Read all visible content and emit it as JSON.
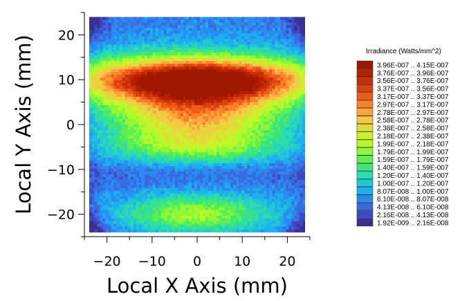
{
  "chart_data": {
    "type": "heatmap",
    "title": "",
    "xlabel": "Local X Axis (mm)",
    "ylabel": "Local Y Axis (mm)",
    "xlim": [
      -25,
      25
    ],
    "ylim": [
      -25,
      25
    ],
    "x_ticks": [
      -20,
      -10,
      0,
      10,
      20
    ],
    "y_ticks": [
      20,
      10,
      0,
      -10,
      -20
    ],
    "x_tick_labels": [
      "−20",
      "−10",
      "0",
      "10",
      "20"
    ],
    "y_tick_labels": [
      "20",
      "10",
      "0",
      "−10",
      "−20"
    ],
    "extent": [
      -24,
      24,
      -24,
      24
    ],
    "grid": false,
    "colorbar": {
      "title": "Irradiance (Watts/mm^2)",
      "placement": "right",
      "bins": [
        {
          "label": "3.96E-007 .. 4.15E-007",
          "color": "#a01800"
        },
        {
          "label": "3.76E-007 .. 3.96E-007",
          "color": "#b52000"
        },
        {
          "label": "3.56E-007 .. 3.76E-007",
          "color": "#c82e08"
        },
        {
          "label": "3.37E-007 .. 3.56E-007",
          "color": "#dc4010"
        },
        {
          "label": "3.17E-007 .. 3.37E-007",
          "color": "#ee5c18"
        },
        {
          "label": "2.97E-007 .. 3.17E-007",
          "color": "#fb8228"
        },
        {
          "label": "2.78E-007 .. 2.97E-007",
          "color": "#fca63c"
        },
        {
          "label": "2.58E-007 .. 2.78E-007",
          "color": "#f6c846"
        },
        {
          "label": "2.38E-007 .. 2.58E-007",
          "color": "#e0dc3a"
        },
        {
          "label": "2.18E-007 .. 2.38E-007",
          "color": "#cef02a"
        },
        {
          "label": "1.99E-007 .. 2.18E-007",
          "color": "#b4fa2a"
        },
        {
          "label": "1.79E-007 .. 1.99E-007",
          "color": "#8ef838"
        },
        {
          "label": "1.59E-007 .. 1.79E-007",
          "color": "#5ef050"
        },
        {
          "label": "1.40E-007 .. 1.59E-007",
          "color": "#3ee67a"
        },
        {
          "label": "1.20E-007 .. 1.40E-007",
          "color": "#2cdcac"
        },
        {
          "label": "1.00E-007 .. 1.20E-007",
          "color": "#22c8d4"
        },
        {
          "label": "8.07E-008 .. 1.00E-007",
          "color": "#1eb0ec"
        },
        {
          "label": "6.10E-008 .. 8.07E-008",
          "color": "#2a8cf2"
        },
        {
          "label": "4.13E-008 .. 6.10E-008",
          "color": "#3a6ae0"
        },
        {
          "label": "2.16E-008 .. 4.13E-008",
          "color": "#3c48c4"
        },
        {
          "label": "1.92E-009 .. 2.16E-008",
          "color": "#3a3094"
        }
      ]
    }
  }
}
